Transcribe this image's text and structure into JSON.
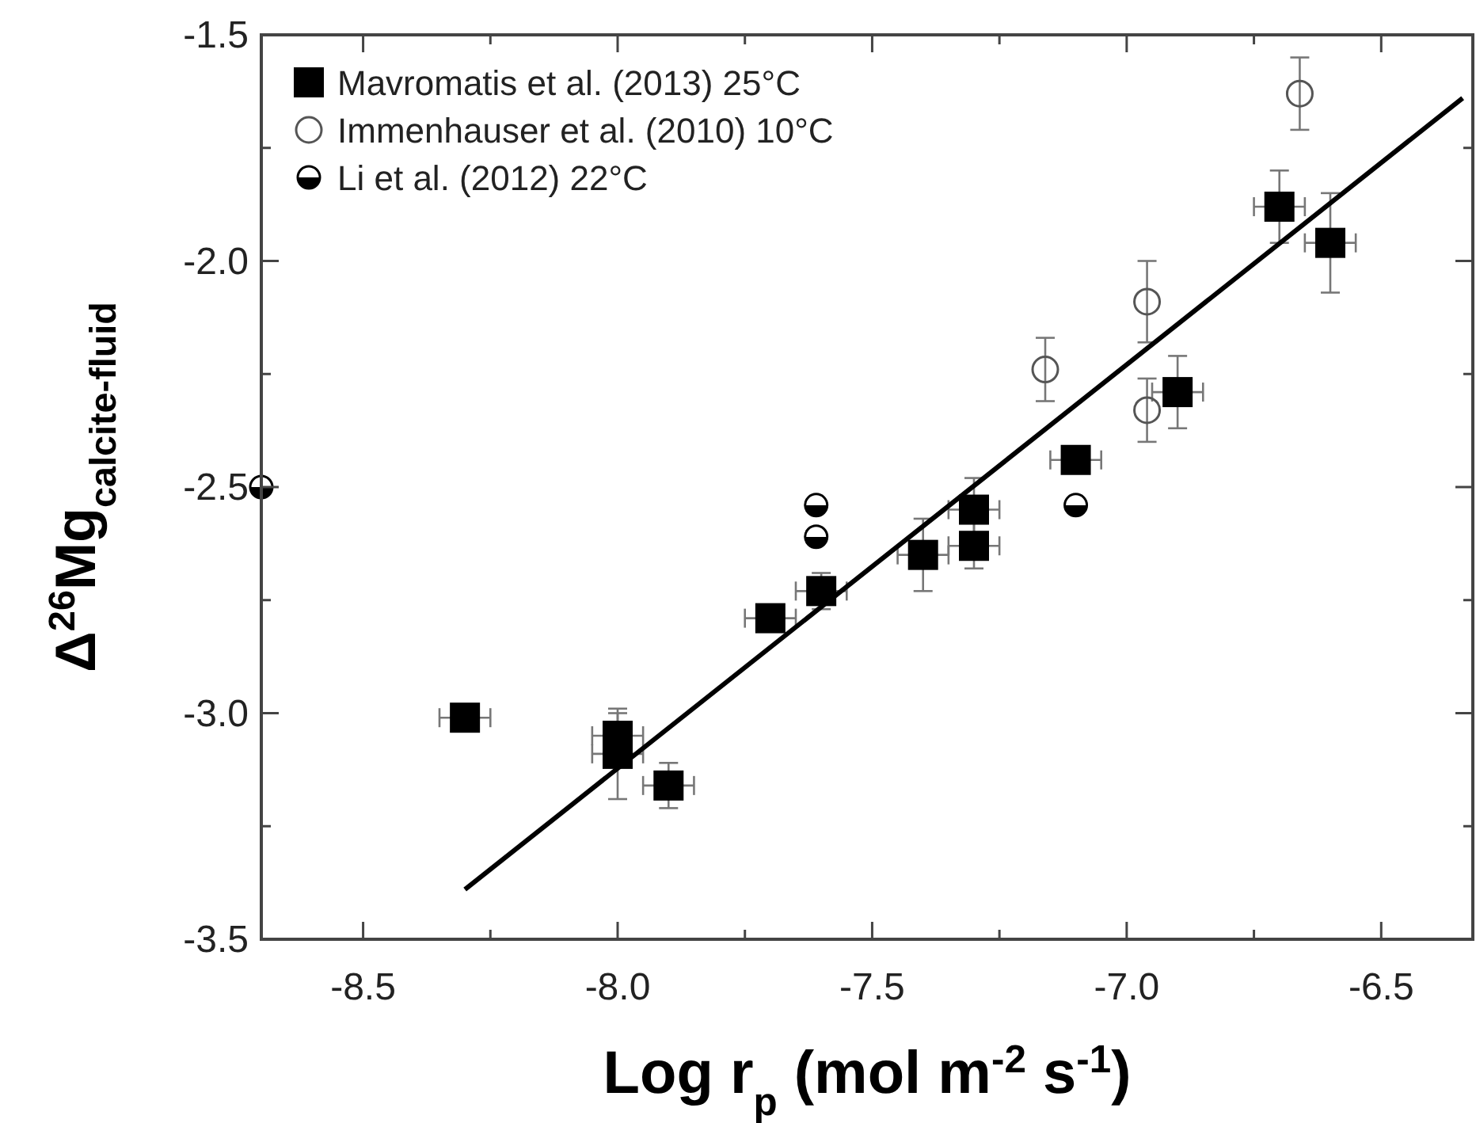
{
  "chart_data": {
    "type": "scatter",
    "xlabel": "Log r$_{p}$ (mol m$^{-2}$ s$^{-1}$)",
    "ylabel": "Δ$^{26}$Mg$_{calcite-fluid}$",
    "xlim": [
      -8.7,
      -6.32
    ],
    "ylim": [
      -3.5,
      -1.5
    ],
    "xticks": [
      {
        "value": -8.5,
        "label": "-8.5"
      },
      {
        "value": -8.25,
        "label": null
      },
      {
        "value": -8.0,
        "label": "-8.0"
      },
      {
        "value": -7.75,
        "label": null
      },
      {
        "value": -7.5,
        "label": "-7.5"
      },
      {
        "value": -7.25,
        "label": null
      },
      {
        "value": -7.0,
        "label": "-7.0"
      },
      {
        "value": -6.75,
        "label": null
      },
      {
        "value": -6.5,
        "label": "-6.5"
      }
    ],
    "yticks": [
      {
        "value": -3.5,
        "label": "-3.5"
      },
      {
        "value": -3.25,
        "label": null
      },
      {
        "value": -3.0,
        "label": "-3.0"
      },
      {
        "value": -2.75,
        "label": null
      },
      {
        "value": -2.5,
        "label": "-2.5"
      },
      {
        "value": -2.25,
        "label": null
      },
      {
        "value": -2.0,
        "label": "-2.0"
      },
      {
        "value": -1.75,
        "label": null
      },
      {
        "value": -1.5,
        "label": "-1.5"
      }
    ],
    "grid": false,
    "legend": "top left",
    "series": [
      {
        "name": "Mavromatis et al. (2013) 25°C",
        "color": "#000000",
        "marker": "square",
        "x": [
          -8.3,
          -8.0,
          -8.0,
          -7.9,
          -7.7,
          -7.6,
          -7.4,
          -7.3,
          -7.3,
          -7.1,
          -6.9,
          -6.7,
          -6.6
        ],
        "values": [
          -3.01,
          -3.05,
          -3.09,
          -3.16,
          -2.79,
          -2.73,
          -2.65,
          -2.55,
          -2.63,
          -2.44,
          -2.29,
          -1.88,
          -1.96
        ],
        "errors": [
          null,
          0.05,
          0.1,
          0.05,
          null,
          0.04,
          0.08,
          0.07,
          0.05,
          null,
          0.08,
          0.08,
          0.11
        ],
        "xerrors": [
          0.05,
          0.05,
          0.05,
          0.05,
          0.05,
          0.05,
          0.05,
          0.05,
          0.05,
          0.05,
          0.05,
          0.05,
          0.05
        ]
      },
      {
        "name": "Immenhauser et al. (2010) 10°C",
        "color": "#555555",
        "marker": "circle",
        "x": [
          -6.66,
          -6.96,
          -7.16,
          -6.96
        ],
        "values": [
          -1.63,
          -2.09,
          -2.24,
          -2.33
        ],
        "errors": [
          0.08,
          0.09,
          0.07,
          0.07
        ]
      },
      {
        "name": "Li et al. (2012) 22°C",
        "color": "#000000",
        "marker": "half-circle",
        "x": [
          -8.7,
          -7.61,
          -7.61,
          -7.1
        ],
        "values": [
          -2.5,
          -2.54,
          -2.61,
          -2.54
        ]
      },
      {
        "type": "line",
        "color": "#000000",
        "marker": "none",
        "line_style": "solid",
        "x": [
          -8.3,
          -6.34
        ],
        "values": [
          -3.39,
          -1.64
        ]
      }
    ]
  }
}
